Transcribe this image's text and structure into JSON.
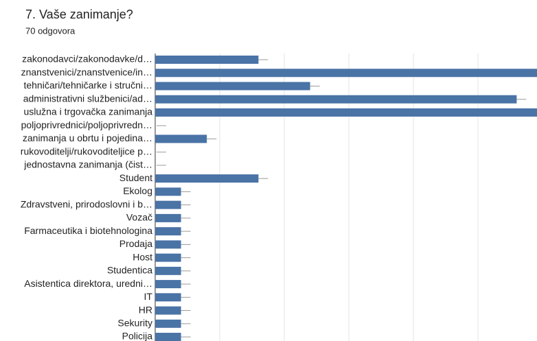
{
  "chart_data": {
    "type": "barh",
    "title": "7. Vaše zanimanje?",
    "subtitle": "70 odgovora",
    "categories": [
      "zakonodavci/zakonodavke/d…",
      "znanstvenici/znanstvenice/in…",
      "tehničari/tehničarke i stručni…",
      "administrativni službenici/ad…",
      "uslužna i trgovačka zanimanja",
      "poljoprivrednici/poljoprivredn…",
      "zanimanja u obrtu i pojedina…",
      "rukovoditelji/rukovoditeljice p…",
      "jednostavna zanimanja (čist…",
      "Student",
      "Ekolog",
      "Zdravstveni, prirodoslovni i b…",
      "Vozač",
      "Farmaceutika i biotehnologina",
      "Prodaja",
      "Host",
      "Studentica",
      "Asistentica direktora, uredni…",
      "IT",
      "HR",
      "Sekurity",
      "Policija"
    ],
    "values": [
      4,
      16,
      6,
      14,
      16,
      0,
      2,
      0,
      0,
      4,
      1,
      1,
      1,
      1,
      1,
      1,
      1,
      1,
      1,
      1,
      1,
      1
    ],
    "color": "#4a73a6",
    "xlim": [
      0,
      15
    ],
    "xticks": [
      0,
      2.5,
      5,
      7.5,
      10,
      12.5,
      15
    ],
    "grid": true
  }
}
